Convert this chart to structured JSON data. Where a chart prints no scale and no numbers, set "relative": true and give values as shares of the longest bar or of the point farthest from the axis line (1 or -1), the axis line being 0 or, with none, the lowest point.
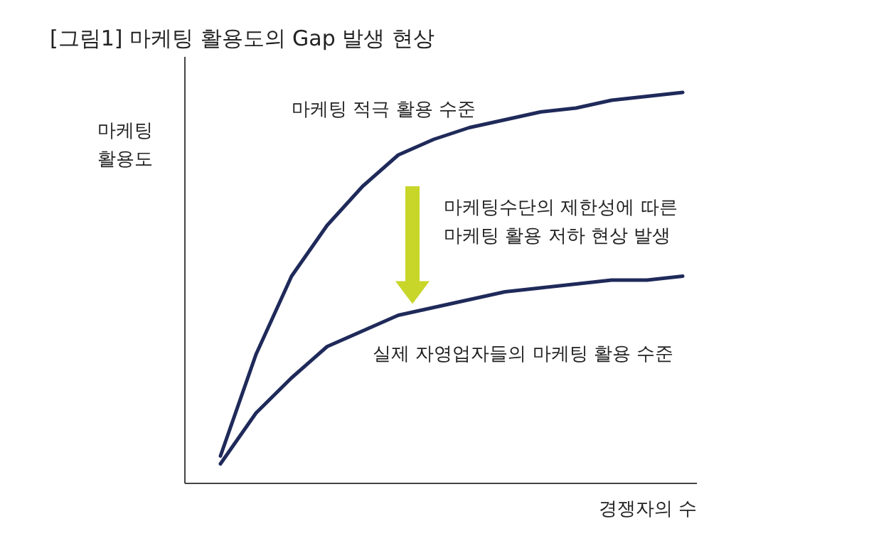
{
  "chart_data": {
    "type": "line",
    "relative": true,
    "title": "[그림1] 마케팅 활용도의 Gap 발생 현상",
    "xlabel": "경쟁자의 수",
    "ylabel": "마케팅 활용도",
    "categories": [
      null,
      null,
      null,
      null,
      null,
      null,
      null,
      null,
      null,
      null,
      null,
      null,
      null,
      null
    ],
    "series": [
      {
        "name": "마케팅 적극 활용 수준",
        "color": "#1f2a5a",
        "values": [
          0.07,
          0.33,
          0.53,
          0.66,
          0.76,
          0.84,
          0.88,
          0.91,
          0.93,
          0.95,
          0.96,
          0.98,
          0.99,
          1
        ]
      },
      {
        "name": "실제 자영업자들의 마케팅 활용 수준",
        "color": "#1f2a5a",
        "values": [
          0.05,
          0.18,
          0.27,
          0.35,
          0.39,
          0.43,
          0.45,
          0.47,
          0.49,
          0.5,
          0.51,
          0.52,
          0.52,
          0.53
        ]
      }
    ],
    "annotations": [
      "마케팅수단의 제한성에 따른 마케팅 활용 저하 현상 발생"
    ]
  }
}
